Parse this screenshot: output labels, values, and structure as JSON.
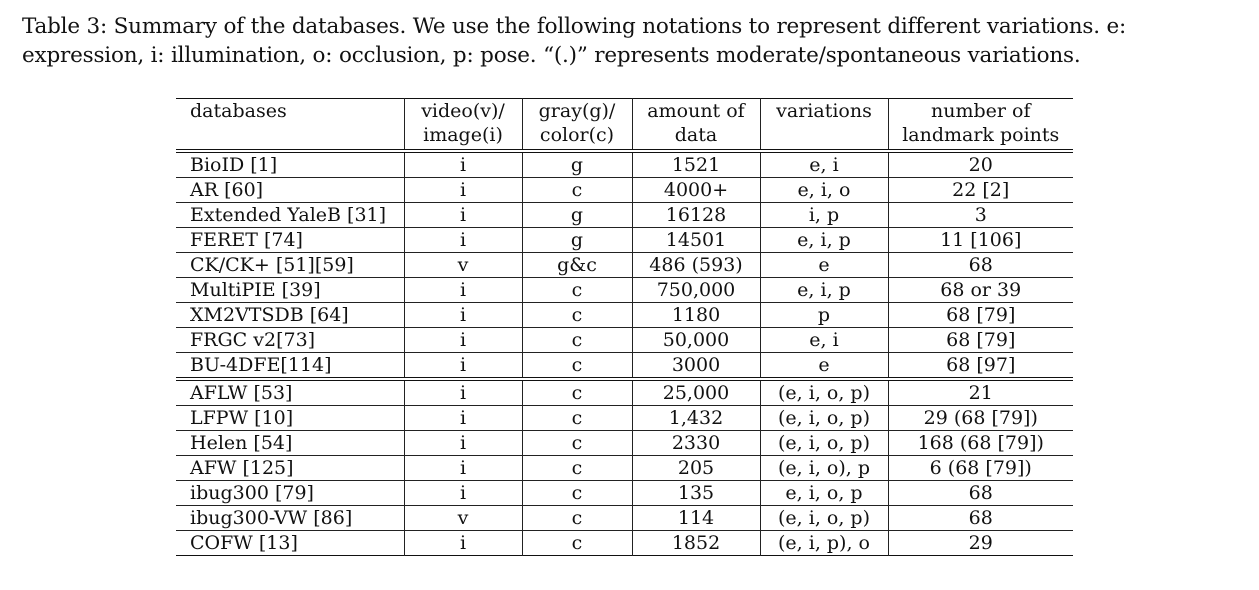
{
  "caption": "Table 3: Summary of the databases. We use the following notations to represent different variations. e: expression, i: illumination, o: occlusion, p: pose. “(.)” represents moderate/spontaneous variations.",
  "table": {
    "headers": [
      {
        "line1": "databases",
        "line2": ""
      },
      {
        "line1": "video(v)/",
        "line2": "image(i)"
      },
      {
        "line1": "gray(g)/",
        "line2": "color(c)"
      },
      {
        "line1": "amount of",
        "line2": "data"
      },
      {
        "line1": "variations",
        "line2": ""
      },
      {
        "line1": "number of",
        "line2": "landmark points"
      }
    ],
    "group1": [
      [
        "BioID [1]",
        "i",
        "g",
        "1521",
        "e, i",
        "20"
      ],
      [
        "AR [60]",
        "i",
        "c",
        "4000+",
        "e, i, o",
        "22 [2]"
      ],
      [
        "Extended YaleB [31]",
        "i",
        "g",
        "16128",
        "i, p",
        "3"
      ],
      [
        "FERET [74]",
        "i",
        "g",
        "14501",
        "e, i, p",
        "11 [106]"
      ],
      [
        "CK/CK+ [51][59]",
        "v",
        "g&c",
        "486 (593)",
        "e",
        "68"
      ],
      [
        "MultiPIE [39]",
        "i",
        "c",
        "750,000",
        "e, i, p",
        "68 or 39"
      ],
      [
        "XM2VTSDB [64]",
        "i",
        "c",
        "1180",
        "p",
        "68 [79]"
      ],
      [
        "FRGC v2[73]",
        "i",
        "c",
        "50,000",
        "e, i",
        "68 [79]"
      ],
      [
        "BU-4DFE[114]",
        "i",
        "c",
        "3000",
        "e",
        "68 [97]"
      ]
    ],
    "group2": [
      [
        "AFLW [53]",
        "i",
        "c",
        "25,000",
        "(e, i, o, p)",
        "21"
      ],
      [
        "LFPW [10]",
        "i",
        "c",
        "1,432",
        "(e, i, o, p)",
        "29 (68 [79])"
      ],
      [
        "Helen [54]",
        "i",
        "c",
        "2330",
        "(e, i, o, p)",
        "168 (68 [79])"
      ],
      [
        "AFW [125]",
        "i",
        "c",
        "205",
        "(e, i, o), p",
        "6 (68 [79])"
      ],
      [
        "ibug300 [79]",
        "i",
        "c",
        "135",
        "e, i, o, p",
        "68"
      ],
      [
        "ibug300-VW [86]",
        "v",
        "c",
        "114",
        "(e, i, o, p)",
        "68"
      ],
      [
        "COFW [13]",
        "i",
        "c",
        "1852",
        "(e, i, p), o",
        "29"
      ]
    ]
  }
}
